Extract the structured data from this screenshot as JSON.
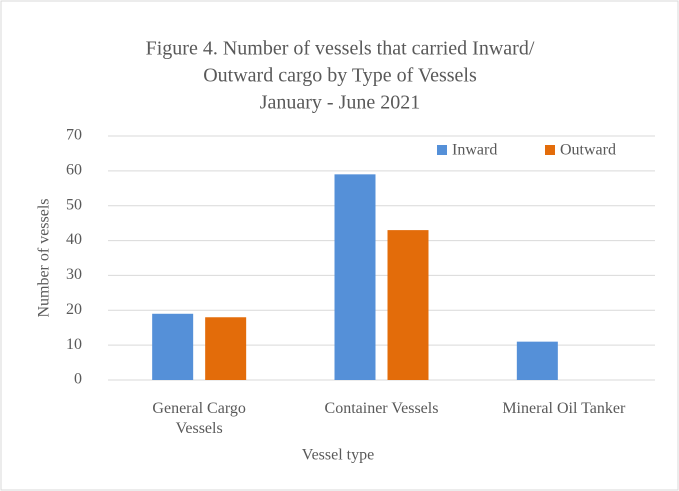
{
  "chart_data": {
    "type": "bar",
    "title": [
      "Figure 4. Number of vessels that carried Inward/",
      "Outward cargo by Type of Vessels",
      "January - June 2021"
    ],
    "x_label": "Vessel type",
    "y_label": "Number of vessels",
    "categories": [
      "General Cargo\nVessels",
      "Container Vessels",
      "Mineral Oil Tanker"
    ],
    "series": [
      {
        "name": "Inward",
        "color": "#5590d8",
        "values": [
          19,
          59,
          11
        ]
      },
      {
        "name": "Outward",
        "color": "#e36c0a",
        "values": [
          18,
          43,
          0
        ]
      }
    ],
    "ylim": [
      0,
      70
    ],
    "yticks": [
      0,
      10,
      20,
      30,
      40,
      50,
      60,
      70
    ],
    "grid": true,
    "legend": "top-right"
  }
}
